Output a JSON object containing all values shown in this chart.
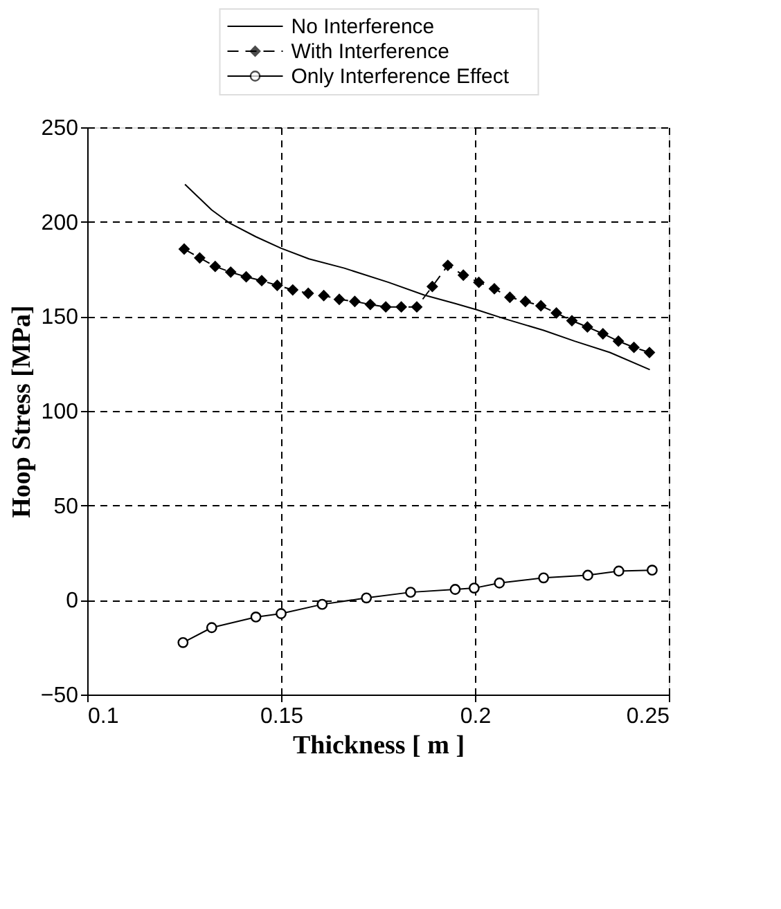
{
  "chart_data": {
    "type": "line",
    "xlabel": "Thickness [ m ]",
    "ylabel": "Hoop Stress [MPa]",
    "xlim": [
      0.1,
      0.25
    ],
    "xticks": [
      0.1,
      0.15,
      0.2,
      0.25
    ],
    "ylim": [
      -50,
      250
    ],
    "yticks": [
      -50,
      0,
      50,
      100,
      150,
      200,
      250
    ],
    "grid": true,
    "legend": "top",
    "series": [
      {
        "name": "No Interference",
        "color": "#000000",
        "marker": "none",
        "line_style": "solid",
        "x": [
          0.1252,
          0.1321,
          0.1366,
          0.1435,
          0.15,
          0.1572,
          0.1663,
          0.1777,
          0.1869,
          0.1949,
          0.2006,
          0.2074,
          0.2177,
          0.2257,
          0.2348,
          0.2451
        ],
        "values": [
          219.8,
          206.3,
          199.5,
          192.1,
          186.0,
          180.4,
          175.5,
          168.0,
          161.3,
          156.8,
          153.4,
          148.9,
          142.6,
          136.9,
          130.9,
          121.8
        ]
      },
      {
        "name": "With Interference",
        "color": "#000000",
        "marker": "diamond",
        "line_style": "dashed",
        "x": [
          0.125,
          0.129,
          0.133,
          0.137,
          0.141,
          0.145,
          0.149,
          0.153,
          0.157,
          0.161,
          0.165,
          0.169,
          0.173,
          0.177,
          0.181,
          0.185,
          0.189,
          0.193,
          0.197,
          0.201,
          0.205,
          0.209,
          0.213,
          0.217,
          0.221,
          0.225,
          0.229,
          0.233,
          0.237,
          0.241,
          0.245
        ],
        "values": [
          185.6,
          180.9,
          176.4,
          173.4,
          170.9,
          168.9,
          166.4,
          164.0,
          162.2,
          161.0,
          159.0,
          157.9,
          156.3,
          155.0,
          155.0,
          155.0,
          165.8,
          177.0,
          171.8,
          168.0,
          164.6,
          160.1,
          157.9,
          155.6,
          151.8,
          147.7,
          144.4,
          140.8,
          136.9,
          133.6,
          130.9
        ]
      },
      {
        "name": "Only Interference Effect",
        "color": "#000000",
        "marker": "circle",
        "line_style": "solid",
        "x": [
          0.1247,
          0.1321,
          0.1435,
          0.15,
          0.1606,
          0.172,
          0.1834,
          0.1949,
          0.1998,
          0.2063,
          0.2177,
          0.2291,
          0.2371,
          0.2457
        ],
        "values": [
          -22.5,
          -14.6,
          -9.0,
          -7.2,
          -2.3,
          1.1,
          4.1,
          5.6,
          6.3,
          9.0,
          11.7,
          13.1,
          15.3,
          15.8
        ]
      }
    ]
  }
}
